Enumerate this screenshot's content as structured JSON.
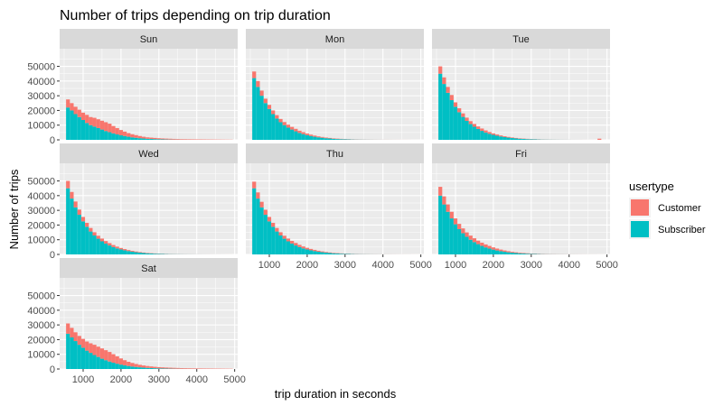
{
  "chart_data": {
    "type": "bar",
    "title": "Number of trips depending on trip duration",
    "xlabel": "trip duration in seconds",
    "ylabel": "Number of trips",
    "xlim": [
      380,
      5080
    ],
    "ylim": [
      0,
      62000
    ],
    "x_ticks": [
      1000,
      2000,
      3000,
      4000,
      5000
    ],
    "y_ticks": [
      0,
      10000,
      20000,
      30000,
      40000,
      50000
    ],
    "y_tick_labels": [
      "0",
      "10000",
      "20000",
      "30000",
      "40000",
      "50000"
    ],
    "bin_width": 100,
    "bins": [
      600,
      700,
      800,
      900,
      1000,
      1100,
      1200,
      1300,
      1400,
      1500,
      1600,
      1700,
      1800,
      1900,
      2000,
      2100,
      2200,
      2300,
      2400,
      2500,
      2600,
      2700,
      2800,
      2900,
      3000,
      3100,
      3200,
      3300,
      3400,
      3500,
      3600,
      3700,
      3800,
      3900,
      4000,
      4100,
      4200,
      4300,
      4400,
      4500,
      4600,
      4700,
      4800,
      4900
    ],
    "stacking": "stacked",
    "legend": {
      "title": "usertype",
      "placement": "right",
      "entries": [
        {
          "name": "Customer",
          "color": "#F8766D"
        },
        {
          "name": "Subscriber",
          "color": "#00BFC4"
        }
      ]
    },
    "facets": [
      {
        "name": "Sun",
        "series": [
          {
            "name": "Subscriber",
            "values": [
              22000,
              20000,
              17500,
              15500,
              13500,
              11500,
              10000,
              9000,
              8000,
              7000,
              6000,
              5200,
              4400,
              3700,
              3100,
              2600,
              2100,
              1700,
              1400,
              1100,
              900,
              700,
              600,
              500,
              400,
              300,
              250,
              200,
              150,
              120,
              100,
              80,
              60,
              50,
              40,
              30,
              25,
              20,
              15,
              10,
              8,
              5,
              3,
              2
            ]
          },
          {
            "name": "Customer",
            "values": [
              5500,
              5000,
              5000,
              5000,
              5000,
              5500,
              5500,
              6000,
              6000,
              6000,
              6000,
              5800,
              5000,
              4300,
              3600,
              3000,
              2500,
              2100,
              1800,
              1500,
              1200,
              1000,
              900,
              800,
              700,
              650,
              600,
              550,
              500,
              450,
              400,
              380,
              350,
              320,
              300,
              280,
              260,
              240,
              220,
              200,
              180,
              160,
              140,
              120
            ]
          }
        ]
      },
      {
        "name": "Mon",
        "series": [
          {
            "name": "Subscriber",
            "values": [
              42000,
              36000,
              30000,
              25000,
              21000,
              17500,
              14500,
              12000,
              10000,
              8300,
              7000,
              5800,
              4700,
              3900,
              3200,
              2600,
              2100,
              1700,
              1400,
              1100,
              900,
              700,
              550,
              450,
              350,
              280,
              220,
              180,
              140,
              110,
              90,
              70,
              55,
              45,
              35,
              28,
              22,
              18,
              14,
              10,
              8,
              6,
              4,
              3
            ]
          },
          {
            "name": "Customer",
            "values": [
              4500,
              4000,
              3500,
              3000,
              2800,
              2500,
              2300,
              2200,
              2100,
              2000,
              1800,
              1700,
              1500,
              1300,
              1100,
              950,
              800,
              650,
              550,
              450,
              380,
              320,
              270,
              230,
              200,
              170,
              150,
              130,
              110,
              100,
              90,
              80,
              70,
              60,
              55,
              50,
              45,
              40,
              35,
              30,
              25,
              20,
              15,
              10
            ]
          }
        ]
      },
      {
        "name": "Tue",
        "series": [
          {
            "name": "Subscriber",
            "values": [
              45000,
              38000,
              32000,
              27000,
              22500,
              18800,
              15600,
              12900,
              10700,
              8900,
              7400,
              6100,
              5000,
              4100,
              3400,
              2800,
              2300,
              1850,
              1500,
              1200,
              950,
              760,
              600,
              480,
              380,
              300,
              240,
              190,
              150,
              120,
              95,
              75,
              60,
              48,
              38,
              30,
              24,
              19,
              15,
              12,
              9,
              7,
              5,
              3
            ]
          },
          {
            "name": "Customer",
            "values": [
              5000,
              4500,
              4000,
              3500,
              3000,
              2700,
              2400,
              2200,
              2000,
              1900,
              1700,
              1600,
              1400,
              1200,
              1000,
              850,
              700,
              580,
              480,
              400,
              330,
              280,
              230,
              200,
              170,
              150,
              130,
              110,
              95,
              85,
              75,
              65,
              58,
              52,
              46,
              40,
              35,
              30,
              26,
              22,
              18,
              15,
              800,
              10
            ]
          }
        ]
      },
      {
        "name": "Wed",
        "series": [
          {
            "name": "Subscriber",
            "values": [
              45000,
              38000,
              32000,
              27000,
              22500,
              18800,
              15600,
              12900,
              10700,
              8900,
              7400,
              6100,
              5000,
              4100,
              3400,
              2800,
              2300,
              1850,
              1500,
              1200,
              950,
              760,
              600,
              480,
              380,
              300,
              240,
              190,
              150,
              120,
              95,
              75,
              60,
              48,
              38,
              30,
              24,
              19,
              15,
              12,
              9,
              7,
              5,
              3
            ]
          },
          {
            "name": "Customer",
            "values": [
              5000,
              4500,
              4000,
              3500,
              3000,
              2700,
              2400,
              2200,
              2000,
              1900,
              1700,
              1600,
              1400,
              1200,
              1000,
              850,
              700,
              580,
              480,
              400,
              330,
              280,
              230,
              200,
              170,
              150,
              130,
              110,
              95,
              85,
              75,
              65,
              58,
              52,
              46,
              40,
              35,
              30,
              26,
              22,
              18,
              15,
              12,
              10
            ]
          }
        ]
      },
      {
        "name": "Thu",
        "series": [
          {
            "name": "Subscriber",
            "values": [
              45000,
              38000,
              32000,
              27000,
              22500,
              18800,
              15600,
              12900,
              10700,
              8900,
              7400,
              6100,
              5000,
              4100,
              3400,
              2800,
              2300,
              1850,
              1500,
              1200,
              950,
              760,
              600,
              480,
              380,
              300,
              240,
              190,
              150,
              120,
              95,
              75,
              60,
              48,
              38,
              30,
              24,
              19,
              15,
              12,
              9,
              7,
              5,
              3
            ]
          },
          {
            "name": "Customer",
            "values": [
              4500,
              4200,
              3800,
              3400,
              3000,
              2700,
              2400,
              2200,
              2000,
              1900,
              1800,
              1700,
              1500,
              1300,
              1100,
              950,
              800,
              650,
              550,
              450,
              380,
              320,
              270,
              230,
              200,
              170,
              150,
              130,
              110,
              100,
              90,
              80,
              70,
              60,
              55,
              50,
              45,
              40,
              35,
              30,
              25,
              20,
              15,
              10
            ]
          }
        ]
      },
      {
        "name": "Fri",
        "series": [
          {
            "name": "Subscriber",
            "values": [
              40000,
              34000,
              29000,
              24500,
              20500,
              17200,
              14400,
              12000,
              10000,
              8400,
              7000,
              5800,
              4800,
              4000,
              3300,
              2700,
              2200,
              1800,
              1450,
              1150,
              920,
              740,
              590,
              470,
              380,
              300,
              240,
              190,
              150,
              120,
              95,
              75,
              60,
              48,
              38,
              30,
              24,
              19,
              15,
              12,
              9,
              7,
              5,
              3
            ]
          },
          {
            "name": "Customer",
            "values": [
              6000,
              5500,
              5000,
              4500,
              4000,
              3600,
              3300,
              3000,
              2800,
              2600,
              2400,
              2200,
              2000,
              1800,
              1500,
              1300,
              1100,
              900,
              750,
              620,
              520,
              440,
              370,
              310,
              260,
              220,
              190,
              160,
              140,
              120,
              105,
              90,
              80,
              70,
              60,
              52,
              45,
              40,
              35,
              30,
              25,
              20,
              15,
              10
            ]
          }
        ]
      },
      {
        "name": "Sat",
        "series": [
          {
            "name": "Subscriber",
            "values": [
              24000,
              21500,
              19000,
              16500,
              14500,
              12500,
              11000,
              9500,
              8200,
              7000,
              6000,
              5100,
              4300,
              3600,
              3000,
              2500,
              2050,
              1700,
              1400,
              1150,
              950,
              780,
              640,
              520,
              420,
              340,
              280,
              230,
              190,
              150,
              120,
              100,
              80,
              65,
              52,
              42,
              34,
              27,
              22,
              17,
              14,
              11,
              8,
              6
            ]
          },
          {
            "name": "Customer",
            "values": [
              7000,
              6500,
              6000,
              6000,
              6000,
              6200,
              6500,
              7000,
              7000,
              7000,
              6800,
              6500,
              5800,
              5000,
              4200,
              3500,
              2900,
              2400,
              2000,
              1700,
              1450,
              1250,
              1100,
              950,
              850,
              780,
              720,
              660,
              600,
              550,
              500,
              460,
              430,
              400,
              370,
              340,
              310,
              290,
              270,
              250,
              230,
              210,
              190,
              170
            ]
          }
        ]
      }
    ]
  }
}
